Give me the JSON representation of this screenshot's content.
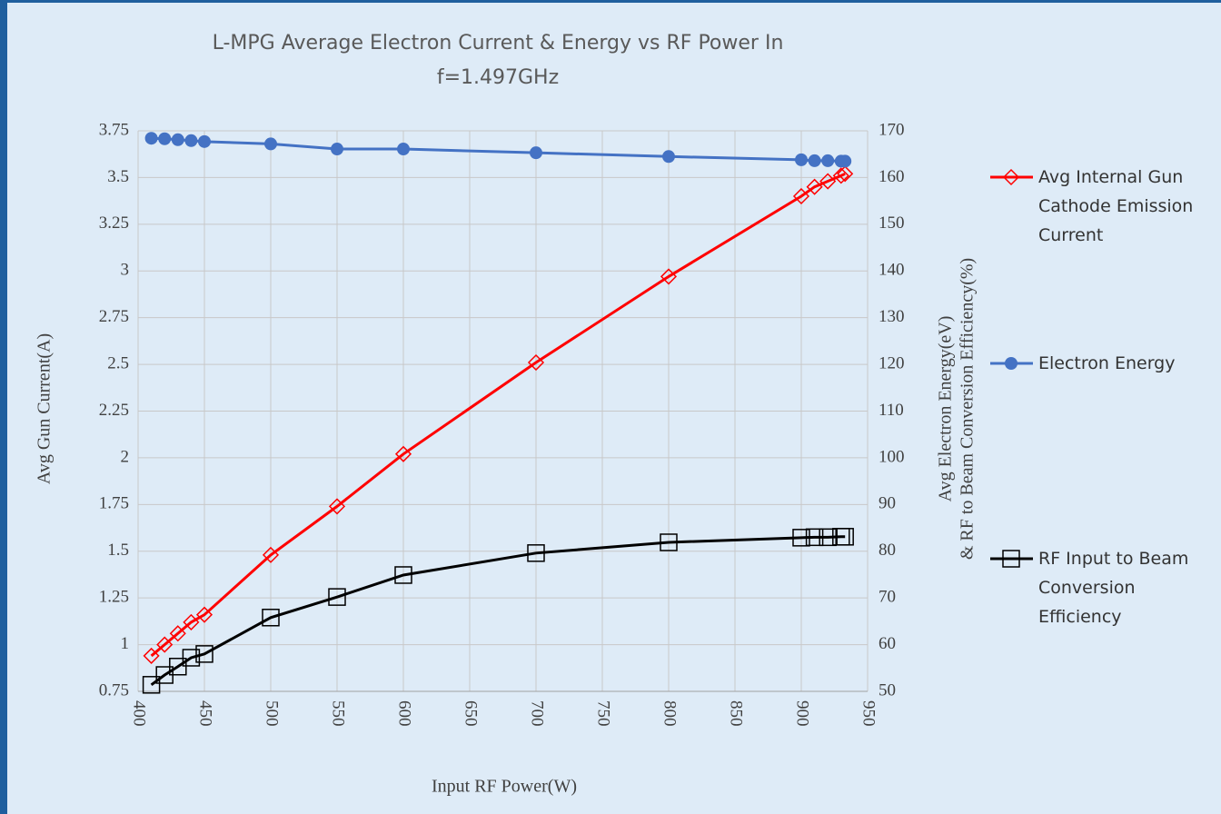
{
  "chart_data": {
    "type": "line",
    "title": "L-MPG Average Electron Current & Energy vs RF Power In",
    "subtitle": "f=1.497GHz",
    "xlabel": "Input RF Power(W)",
    "ylabel": "Avg Gun Current(A)",
    "y2label": [
      "Avg Electron Energy(eV)",
      "& RF to Beam Conversion Efficiency(%)"
    ],
    "xlim": [
      400,
      950
    ],
    "xticks": [
      400,
      450,
      500,
      550,
      600,
      650,
      700,
      750,
      800,
      850,
      900,
      950
    ],
    "ylim": [
      0.75,
      3.75
    ],
    "yticks": [
      0.75,
      1,
      1.25,
      1.5,
      1.75,
      2,
      2.25,
      2.5,
      2.75,
      3,
      3.25,
      3.5,
      3.75
    ],
    "y2lim": [
      50,
      170
    ],
    "y2ticks": [
      50,
      60,
      70,
      80,
      90,
      100,
      110,
      120,
      130,
      140,
      150,
      160,
      170
    ],
    "grid": true,
    "legend": "right",
    "series": [
      {
        "name": "Avg Internal Gun Cathode Emission Current",
        "color": "#ff0000",
        "marker": "diamond",
        "x": [
          410,
          420,
          430,
          440,
          450,
          500,
          550,
          600,
          700,
          800,
          900,
          910,
          920,
          930,
          933
        ],
        "values": [
          0.94,
          1.0,
          1.06,
          1.12,
          1.16,
          1.48,
          1.74,
          2.02,
          2.51,
          2.97,
          3.4,
          3.45,
          3.48,
          3.51,
          3.52
        ]
      },
      {
        "name": "Electron Energy",
        "color": "#4472c4",
        "marker": "circle",
        "axis": "y2",
        "x": [
          410,
          420,
          430,
          440,
          450,
          500,
          550,
          600,
          700,
          800,
          900,
          910,
          920,
          930,
          933
        ],
        "values": [
          168.4,
          168.3,
          168.1,
          167.9,
          167.7,
          167.2,
          166.1,
          166.1,
          165.3,
          164.5,
          163.8,
          163.6,
          163.6,
          163.5,
          163.5
        ]
      },
      {
        "name": "RF Input to Beam Conversion Efficiency",
        "color": "#000000",
        "marker": "square",
        "axis": "y2",
        "x": [
          410,
          420,
          430,
          440,
          450,
          500,
          550,
          600,
          700,
          800,
          900,
          910,
          920,
          930,
          933
        ],
        "values": [
          51.4,
          53.5,
          55.3,
          57.2,
          58.0,
          65.8,
          70.2,
          74.9,
          79.6,
          81.9,
          82.9,
          83.0,
          83.0,
          83.1,
          83.1
        ]
      }
    ]
  }
}
